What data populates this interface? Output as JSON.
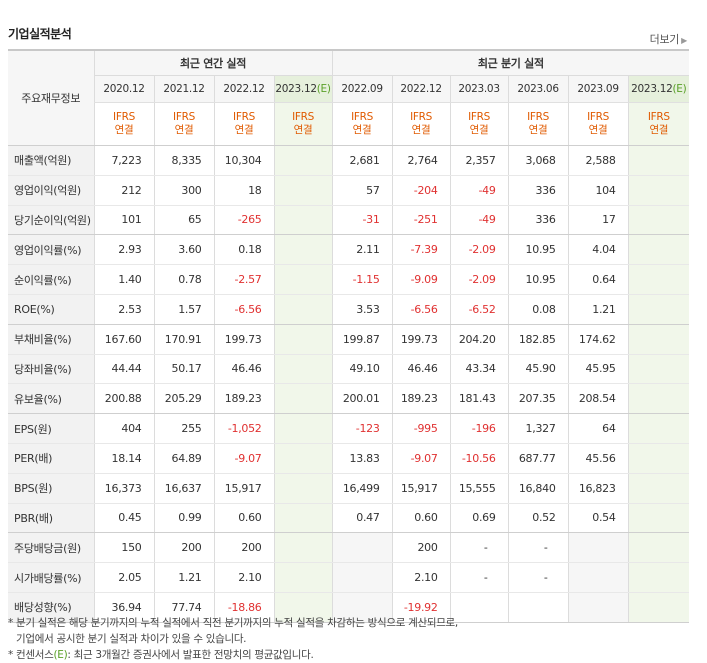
{
  "section": {
    "title": "기업실적분석",
    "more_label": "더보기"
  },
  "header": {
    "row_label": "주요재무정보",
    "annual_title": "최근 연간 실적",
    "quarter_title": "최근 분기 실적",
    "annual_periods": [
      "2020.12",
      "2021.12",
      "2022.12",
      "2023.12"
    ],
    "quarter_periods": [
      "2022.09",
      "2022.12",
      "2023.03",
      "2023.06",
      "2023.09",
      "2023.12"
    ],
    "estimate_mark": "(E)",
    "ifrs": "IFRS",
    "consolidated": "연결"
  },
  "rows": [
    {
      "label": "매출액(억원)",
      "annual": [
        "7,223",
        "8,335",
        "10,304",
        ""
      ],
      "quarter": [
        "2,681",
        "2,764",
        "2,357",
        "3,068",
        "2,588",
        ""
      ]
    },
    {
      "label": "영업이익(억원)",
      "annual": [
        "212",
        "300",
        "18",
        ""
      ],
      "quarter": [
        "57",
        "-204",
        "-49",
        "336",
        "104",
        ""
      ]
    },
    {
      "label": "당기순이익(억원)",
      "annual": [
        "101",
        "65",
        "-265",
        ""
      ],
      "quarter": [
        "-31",
        "-251",
        "-49",
        "336",
        "17",
        ""
      ]
    },
    {
      "label": "영업이익률(%)",
      "annual": [
        "2.93",
        "3.60",
        "0.18",
        ""
      ],
      "quarter": [
        "2.11",
        "-7.39",
        "-2.09",
        "10.95",
        "4.04",
        ""
      ]
    },
    {
      "label": "순이익률(%)",
      "annual": [
        "1.40",
        "0.78",
        "-2.57",
        ""
      ],
      "quarter": [
        "-1.15",
        "-9.09",
        "-2.09",
        "10.95",
        "0.64",
        ""
      ]
    },
    {
      "label": "ROE(%)",
      "annual": [
        "2.53",
        "1.57",
        "-6.56",
        ""
      ],
      "quarter": [
        "3.53",
        "-6.56",
        "-6.52",
        "0.08",
        "1.21",
        ""
      ]
    },
    {
      "label": "부채비율(%)",
      "annual": [
        "167.60",
        "170.91",
        "199.73",
        ""
      ],
      "quarter": [
        "199.87",
        "199.73",
        "204.20",
        "182.85",
        "174.62",
        ""
      ]
    },
    {
      "label": "당좌비율(%)",
      "annual": [
        "44.44",
        "50.17",
        "46.46",
        ""
      ],
      "quarter": [
        "49.10",
        "46.46",
        "43.34",
        "45.90",
        "45.95",
        ""
      ]
    },
    {
      "label": "유보율(%)",
      "annual": [
        "200.88",
        "205.29",
        "189.23",
        ""
      ],
      "quarter": [
        "200.01",
        "189.23",
        "181.43",
        "207.35",
        "208.54",
        ""
      ]
    },
    {
      "label": "EPS(원)",
      "annual": [
        "404",
        "255",
        "-1,052",
        ""
      ],
      "quarter": [
        "-123",
        "-995",
        "-196",
        "1,327",
        "64",
        ""
      ]
    },
    {
      "label": "PER(배)",
      "annual": [
        "18.14",
        "64.89",
        "-9.07",
        ""
      ],
      "quarter": [
        "13.83",
        "-9.07",
        "-10.56",
        "687.77",
        "45.56",
        ""
      ]
    },
    {
      "label": "BPS(원)",
      "annual": [
        "16,373",
        "16,637",
        "15,917",
        ""
      ],
      "quarter": [
        "16,499",
        "15,917",
        "15,555",
        "16,840",
        "16,823",
        ""
      ]
    },
    {
      "label": "PBR(배)",
      "annual": [
        "0.45",
        "0.99",
        "0.60",
        ""
      ],
      "quarter": [
        "0.47",
        "0.60",
        "0.69",
        "0.52",
        "0.54",
        ""
      ]
    },
    {
      "label": "주당배당금(원)",
      "annual": [
        "150",
        "200",
        "200",
        ""
      ],
      "quarter": [
        "",
        "200",
        "-",
        "-",
        "",
        ""
      ]
    },
    {
      "label": "시가배당률(%)",
      "annual": [
        "2.05",
        "1.21",
        "2.10",
        ""
      ],
      "quarter": [
        "",
        "2.10",
        "-",
        "-",
        "",
        ""
      ]
    },
    {
      "label": "배당성향(%)",
      "annual": [
        "36.94",
        "77.74",
        "-18.86",
        ""
      ],
      "quarter": [
        "",
        "-19.92",
        "",
        "",
        "",
        ""
      ]
    }
  ],
  "footnotes": {
    "note1_line1": "* 분기 실적은 해당 분기까지의 누적 실적에서 직전 분기까지의 누적 실적을 차감하는 방식으로 계산되므로,",
    "note1_line2": "기업에서 공시한 분기 실적과 차이가 있을 수 있습니다.",
    "note2_pre": "* 컨센서스",
    "note2_mark": "(E)",
    "note2_post": ": 최근 3개월간 증권사에서 발표한 전망치의 평균값입니다."
  },
  "colors": {
    "negative": "#e03131",
    "ifrs": "#e05a00",
    "estimate": "#5aa028"
  }
}
